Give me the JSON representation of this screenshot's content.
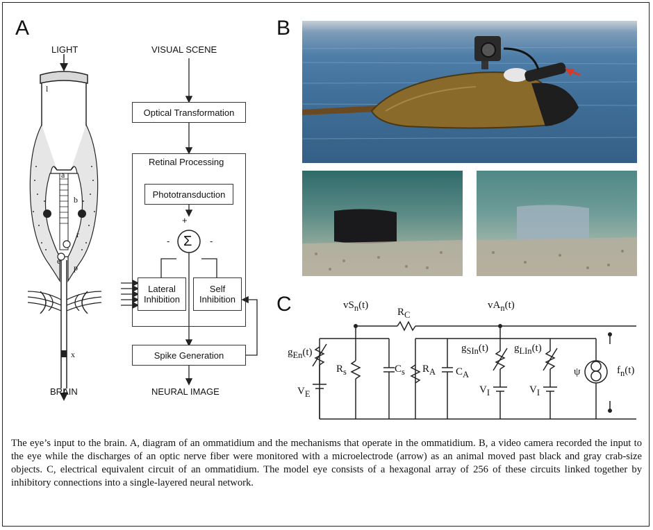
{
  "panels": {
    "a": {
      "letter": "A",
      "ommatidium": {
        "top_label": "LIGHT",
        "bottom_label": "BRAIN",
        "part_letters": [
          "l",
          "a",
          "b",
          "r",
          "e",
          "p",
          "x"
        ]
      },
      "flow": {
        "top_label": "VISUAL SCENE",
        "optical": "Optical Transformation",
        "retinal": "Retinal Processing",
        "photo": "Phototransduction",
        "sum": "Σ",
        "plus": "+",
        "minus_left": "-",
        "minus_right": "-",
        "lateral_1": "Lateral",
        "lateral_2": "Inhibition",
        "self_1": "Self",
        "self_2": "Inhibition",
        "spike": "Spike Generation",
        "bottom_label": "NEURAL IMAGE"
      }
    },
    "b": {
      "letter": "B"
    },
    "c": {
      "letter": "C",
      "vs": "vS",
      "vs_sub": "n",
      "vs_t": "(t)",
      "rc": "R",
      "rc_sub": "C",
      "va": "vA",
      "va_sub": "n",
      "va_t": "(t)",
      "ge": "g",
      "ge_sub": "En",
      "ge_t": "(t)",
      "rs": "R",
      "rs_sub": "s",
      "cs": "C",
      "cs_sub": "s",
      "ra": "R",
      "ra_sub": "A",
      "ca": "C",
      "ca_sub": "A",
      "gsi": "g",
      "gsi_sub": "SIn",
      "gsi_t": "(t)",
      "gli": "g",
      "gli_sub": "LIn",
      "gli_t": "(t)",
      "ve": "V",
      "ve_sub": "E",
      "vi1": "V",
      "vi1_sub": "I",
      "vi2": "V",
      "vi2_sub": "I",
      "psi": "ψ",
      "fn": "f",
      "fn_sub": "n",
      "fn_t": "(t)"
    }
  },
  "caption": "The eye’s input to the brain. A, diagram of an ommatidium and the mechanisms that operate in the ommatidium. B, a video camera recorded the input to the eye while the discharges of an optic nerve fiber were monitored with a microelectrode (arrow) as an animal moved past black and gray crab-size objects. C, electrical equivalent circuit of an ommatidium. The model eye consists of a hexagonal array of 256 of these circuits linked together by inhibitory connections into a single-layered neural network.",
  "colors": {
    "arrow_red": "#d43a2a",
    "water": "#3f6f99",
    "shell": "#8a6a2a",
    "underwater": "#5a8a86"
  }
}
